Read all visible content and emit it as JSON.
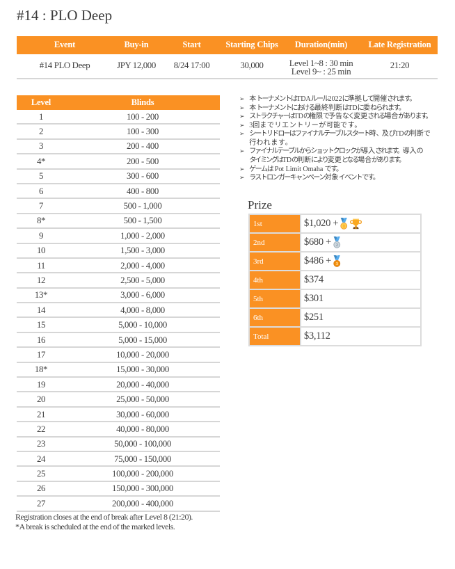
{
  "title": "#14 : PLO Deep",
  "colors": {
    "accent": "#FA9123",
    "header_text": "#FFFFFF",
    "body_text": "#3F3F3F",
    "border": "#D6D6D6"
  },
  "event_table": {
    "headers": [
      "Event",
      "Buy-in",
      "Start",
      "Starting Chips",
      "Duration(min)",
      "Late Registration"
    ],
    "row": {
      "event": "#14 PLO Deep",
      "buy_in": "JPY 12,000",
      "start": "8/24 17:00",
      "starting_chips": "30,000",
      "duration_lines": "Level 1~8 : 30 min\nLevel 9~ : 25 min",
      "late_registration": "21:20"
    }
  },
  "levels_table": {
    "headers": [
      "Level",
      "Blinds"
    ],
    "rows": [
      {
        "level": "1",
        "blinds": "100 - 200"
      },
      {
        "level": "2",
        "blinds": "100 - 300"
      },
      {
        "level": "3",
        "blinds": "200 - 400"
      },
      {
        "level": "4*",
        "blinds": "200 - 500"
      },
      {
        "level": "5",
        "blinds": "300 - 600"
      },
      {
        "level": "6",
        "blinds": "400 - 800"
      },
      {
        "level": "7",
        "blinds": "500 - 1,000"
      },
      {
        "level": "8*",
        "blinds": "500 - 1,500"
      },
      {
        "level": "9",
        "blinds": "1,000 - 2,000"
      },
      {
        "level": "10",
        "blinds": "1,500 - 3,000"
      },
      {
        "level": "11",
        "blinds": "2,000 - 4,000"
      },
      {
        "level": "12",
        "blinds": "2,500 - 5,000"
      },
      {
        "level": "13*",
        "blinds": "3,000 - 6,000"
      },
      {
        "level": "14",
        "blinds": "4,000 - 8,000"
      },
      {
        "level": "15",
        "blinds": "5,000 - 10,000"
      },
      {
        "level": "16",
        "blinds": "5,000 - 15,000"
      },
      {
        "level": "17",
        "blinds": "10,000 - 20,000"
      },
      {
        "level": "18*",
        "blinds": "15,000 - 30,000"
      },
      {
        "level": "19",
        "blinds": "20,000 - 40,000"
      },
      {
        "level": "20",
        "blinds": "25,000 - 50,000"
      },
      {
        "level": "21",
        "blinds": "30,000 - 60,000"
      },
      {
        "level": "22",
        "blinds": "40,000 - 80,000"
      },
      {
        "level": "23",
        "blinds": "50,000 - 100,000"
      },
      {
        "level": "24",
        "blinds": "75,000 - 150,000"
      },
      {
        "level": "25",
        "blinds": "100,000 - 200,000"
      },
      {
        "level": "26",
        "blinds": "150,000 - 300,000"
      },
      {
        "level": "27",
        "blinds": "200,000 - 400,000"
      }
    ]
  },
  "footnotes": [
    "Registration closes at the end of break after Level 8 (21:20).",
    "*A break is scheduled at the end of the marked levels."
  ],
  "rules": {
    "bullet": "➢",
    "items": [
      {
        "text": "本トーナメントはTDAルール2022に準拠して開催されます。"
      },
      {
        "text": "本トーナメントにおける最終判断はTDに委ねられます。"
      },
      {
        "text": "ストラクチャーはTDの権限で予告なく変更される場合があります。"
      },
      {
        "text": "3回までリエントリーが可能です。"
      },
      {
        "text": "シートリドローはファイナルテーブルスタート時、及びTDの判断で\n行われます。"
      },
      {
        "text": "ファイナルテーブルからショットクロックが導入されます。導入の\nタイミングはTDの判断により変更となる場合があります。"
      },
      {
        "text": "ゲームは Pot Limit Omaha です。"
      },
      {
        "text": "ラストロンガーキャンペーン対象イベントです。"
      }
    ]
  },
  "prize": {
    "heading": "Prize",
    "rows": [
      {
        "place": "1st",
        "amount": "$1,020 +",
        "icons": [
          "gold-medal",
          "trophy"
        ]
      },
      {
        "place": "2nd",
        "amount": "$680 +",
        "icons": [
          "silver-medal"
        ]
      },
      {
        "place": "3rd",
        "amount": "$486 +",
        "icons": [
          "bronze-medal"
        ]
      },
      {
        "place": "4th",
        "amount": "$374",
        "icons": []
      },
      {
        "place": "5th",
        "amount": "$301",
        "icons": []
      },
      {
        "place": "6th",
        "amount": "$251",
        "icons": []
      },
      {
        "place": "Total",
        "amount": "$3,112",
        "icons": []
      }
    ]
  }
}
